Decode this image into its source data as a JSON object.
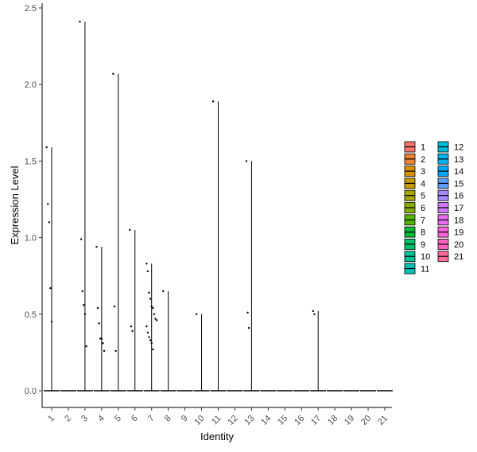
{
  "chart_data": {
    "type": "violin",
    "xlabel": "Identity",
    "ylabel": "Expression Level",
    "ylim": [
      0,
      2.5
    ],
    "yticks": [
      "0.0",
      "0.5",
      "1.0",
      "1.5",
      "2.0",
      "2.5"
    ],
    "categories": [
      "1",
      "2",
      "3",
      "4",
      "5",
      "6",
      "7",
      "8",
      "9",
      "10",
      "11",
      "12",
      "13",
      "14",
      "15",
      "16",
      "17",
      "18",
      "19",
      "20",
      "21"
    ],
    "colors": [
      "#F8766D",
      "#EB8335",
      "#DA8F00",
      "#C49A00",
      "#A9A400",
      "#86AC00",
      "#53B400",
      "#00BA38",
      "#00BE6C",
      "#00C094",
      "#00C0B8",
      "#00BCD8",
      "#00B4EF",
      "#00A8FF",
      "#619CFF",
      "#A58AFF",
      "#CF78FF",
      "#EA6AF1",
      "#FA62DB",
      "#FF61C0",
      "#FF6A9E"
    ],
    "max_values": [
      1.59,
      0,
      2.41,
      0.94,
      2.07,
      1.05,
      0.83,
      0.65,
      0,
      0.5,
      1.89,
      0,
      1.5,
      0,
      0,
      0,
      0.52,
      0,
      0,
      0,
      0
    ],
    "points": [
      {
        "cat": 1,
        "values": [
          1.59,
          1.22,
          1.1,
          0.67,
          0.45
        ]
      },
      {
        "cat": 3,
        "values": [
          2.41,
          0.99,
          0.65,
          0.56,
          0.5,
          0.29
        ]
      },
      {
        "cat": 4,
        "values": [
          0.94,
          0.54,
          0.44,
          0.34,
          0.34,
          0.31,
          0.26
        ]
      },
      {
        "cat": 5,
        "values": [
          2.07,
          0.55,
          0.26
        ]
      },
      {
        "cat": 6,
        "values": [
          1.05,
          0.42,
          0.39
        ]
      },
      {
        "cat": 7,
        "values": [
          0.83,
          0.78,
          0.64,
          0.6,
          0.55,
          0.54,
          0.5,
          0.47,
          0.46,
          0.42,
          0.38,
          0.35,
          0.33,
          0.31,
          0.27
        ]
      },
      {
        "cat": 8,
        "values": [
          0.65
        ]
      },
      {
        "cat": 10,
        "values": [
          0.5
        ]
      },
      {
        "cat": 11,
        "values": [
          1.89
        ]
      },
      {
        "cat": 13,
        "values": [
          1.5,
          0.51,
          0.41
        ]
      },
      {
        "cat": 17,
        "values": [
          0.52,
          0.5
        ]
      }
    ],
    "legend": {
      "placement": "right",
      "columns": [
        [
          "1",
          "2",
          "3",
          "4",
          "5",
          "6",
          "7",
          "8",
          "9",
          "10",
          "11"
        ],
        [
          "12",
          "13",
          "14",
          "15",
          "16",
          "17",
          "18",
          "19",
          "20",
          "21"
        ]
      ]
    },
    "grid": false
  }
}
